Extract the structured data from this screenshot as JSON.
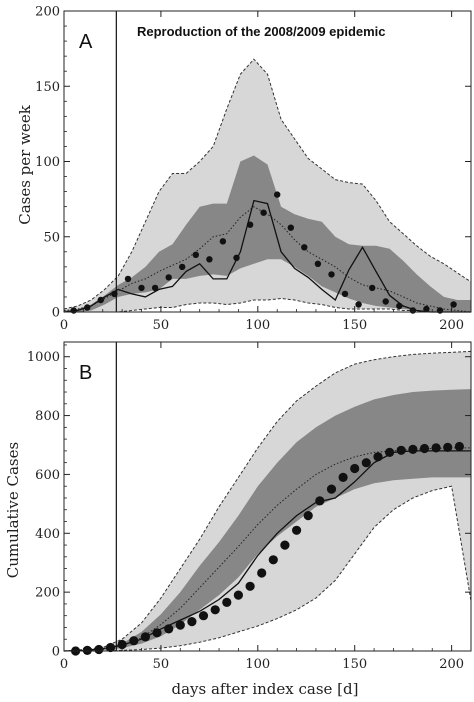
{
  "figure": {
    "xlabel": "days after index case [d]"
  },
  "chart_data": [
    {
      "type": "area",
      "panel_label": "A",
      "title": "Reproduction of the 2008/2009 epidemic",
      "ylabel": "Cases per week",
      "xlim": [
        0,
        210
      ],
      "ylim": [
        0,
        200
      ],
      "xticks": [
        0,
        50,
        100,
        150,
        200
      ],
      "yticks": [
        0,
        50,
        100,
        150,
        200
      ],
      "vline_x": 27,
      "colors": {
        "outer_band": "#d7d7d7",
        "inner_band": "#878787",
        "lines": "#111111"
      },
      "x": [
        0,
        7,
        14,
        21,
        28,
        35,
        42,
        49,
        56,
        63,
        70,
        77,
        84,
        91,
        98,
        105,
        112,
        119,
        126,
        133,
        140,
        147,
        154,
        161,
        168,
        175,
        182,
        189,
        196,
        203,
        210
      ],
      "outer_upper": [
        2,
        4,
        8,
        15,
        24,
        40,
        60,
        80,
        92,
        92,
        100,
        110,
        135,
        158,
        168,
        158,
        128,
        115,
        102,
        95,
        88,
        86,
        85,
        74,
        60,
        52,
        44,
        37,
        32,
        26,
        20
      ],
      "outer_lower": [
        0,
        0,
        0,
        0,
        0,
        1,
        2,
        3,
        3,
        5,
        6,
        6,
        5,
        6,
        8,
        8,
        9,
        8,
        6,
        5,
        3,
        2,
        2,
        2,
        2,
        1,
        1,
        0,
        0,
        0,
        0
      ],
      "inner_upper": [
        1,
        2,
        5,
        11,
        18,
        23,
        30,
        40,
        45,
        58,
        70,
        72,
        72,
        100,
        104,
        98,
        70,
        65,
        62,
        60,
        50,
        45,
        44,
        44,
        42,
        34,
        25,
        17,
        10,
        8,
        8
      ],
      "inner_lower": [
        0,
        0,
        1,
        5,
        10,
        12,
        13,
        15,
        22,
        22,
        24,
        25,
        24,
        29,
        32,
        35,
        35,
        30,
        24,
        17,
        13,
        9,
        6,
        4,
        3,
        2,
        1,
        0,
        0,
        0,
        0
      ],
      "median_dotted": [
        1,
        2,
        4,
        9,
        14,
        19,
        22,
        27,
        31,
        35,
        42,
        50,
        52,
        63,
        70,
        65,
        58,
        48,
        40,
        35,
        30,
        23,
        18,
        16,
        14,
        10,
        6,
        4,
        2,
        1,
        0
      ],
      "observed_solid": {
        "x": [
          0,
          7,
          14,
          21,
          28,
          35,
          42,
          49,
          56,
          63,
          70,
          77,
          84,
          91,
          98,
          105,
          112,
          119,
          126,
          133,
          140,
          147,
          154,
          161,
          168,
          175,
          182,
          189,
          196,
          203,
          210
        ],
        "y": [
          0,
          1,
          4,
          10,
          15,
          12,
          10,
          15,
          17,
          27,
          32,
          22,
          22,
          40,
          74,
          72,
          40,
          29,
          23,
          15,
          8,
          28,
          43,
          27,
          11,
          4,
          1,
          0,
          0,
          0,
          0
        ]
      },
      "points": {
        "x": [
          5,
          12,
          19,
          26,
          33,
          40,
          47,
          54,
          61,
          68,
          75,
          82,
          89,
          96,
          103,
          110,
          117,
          124,
          131,
          138,
          145,
          152,
          159,
          166,
          173,
          180,
          187,
          194,
          201
        ],
        "y": [
          1,
          3,
          8,
          12,
          22,
          16,
          16,
          23,
          30,
          38,
          35,
          47,
          36,
          58,
          66,
          78,
          56,
          43,
          32,
          25,
          12,
          5,
          16,
          7,
          4,
          1,
          2,
          1,
          5
        ]
      }
    },
    {
      "type": "area",
      "panel_label": "B",
      "ylabel": "Cumulative Cases",
      "xlim": [
        0,
        210
      ],
      "ylim": [
        0,
        1050
      ],
      "xticks": [
        0,
        50,
        100,
        150,
        200
      ],
      "yticks": [
        0,
        200,
        400,
        600,
        800,
        1000
      ],
      "vline_x": 27,
      "colors": {
        "outer_band": "#d7d7d7",
        "inner_band": "#878787",
        "lines": "#111111"
      },
      "x": [
        0,
        10,
        20,
        30,
        40,
        50,
        60,
        70,
        80,
        90,
        100,
        110,
        120,
        130,
        140,
        150,
        160,
        170,
        180,
        190,
        200,
        210
      ],
      "outer_upper": [
        0,
        5,
        12,
        40,
        95,
        180,
        280,
        380,
        490,
        590,
        690,
        780,
        850,
        900,
        945,
        975,
        990,
        1000,
        1008,
        1012,
        1015,
        1018
      ],
      "outer_lower": [
        0,
        0,
        0,
        2,
        5,
        10,
        18,
        30,
        45,
        65,
        85,
        110,
        140,
        180,
        240,
        330,
        420,
        480,
        520,
        545,
        560,
        170
      ],
      "inner_upper": [
        0,
        2,
        8,
        25,
        65,
        125,
        200,
        290,
        370,
        460,
        560,
        640,
        710,
        760,
        800,
        830,
        855,
        870,
        880,
        885,
        888,
        890
      ],
      "inner_lower": [
        0,
        0,
        3,
        10,
        25,
        50,
        90,
        140,
        190,
        250,
        330,
        390,
        440,
        490,
        520,
        550,
        570,
        580,
        585,
        590,
        590,
        590
      ],
      "median_dotted": [
        0,
        1,
        5,
        18,
        45,
        90,
        145,
        215,
        285,
        355,
        430,
        495,
        550,
        600,
        635,
        660,
        675,
        680,
        685,
        688,
        690,
        690
      ],
      "observed_solid": {
        "x": [
          0,
          10,
          20,
          30,
          40,
          50,
          60,
          70,
          80,
          90,
          100,
          110,
          120,
          130,
          140,
          150,
          160,
          170,
          180,
          190,
          200,
          210
        ],
        "y": [
          0,
          2,
          8,
          20,
          40,
          75,
          105,
          135,
          175,
          230,
          325,
          400,
          460,
          505,
          520,
          575,
          640,
          675,
          680,
          680,
          680,
          680
        ]
      },
      "points": {
        "x": [
          6,
          12,
          18,
          24,
          30,
          36,
          42,
          48,
          54,
          60,
          66,
          72,
          78,
          84,
          90,
          96,
          102,
          108,
          114,
          120,
          126,
          132,
          138,
          144,
          150,
          156,
          162,
          168,
          174,
          180,
          186,
          192,
          198,
          204
        ],
        "y": [
          0,
          2,
          5,
          12,
          22,
          35,
          48,
          62,
          75,
          88,
          100,
          120,
          140,
          165,
          190,
          220,
          265,
          310,
          360,
          410,
          460,
          510,
          550,
          590,
          620,
          640,
          660,
          675,
          682,
          685,
          688,
          690,
          692,
          695
        ]
      }
    }
  ]
}
